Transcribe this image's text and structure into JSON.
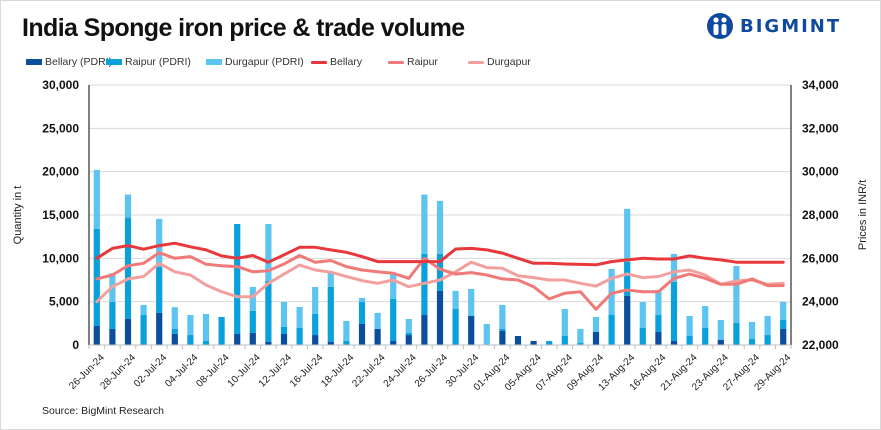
{
  "header": {
    "title": "India Sponge iron price & trade volume",
    "brand": "BIGMINT",
    "brand_icon": "bigmint-people-logo-icon"
  },
  "legend": [
    {
      "label": "Bellary (PDRI)",
      "kind": "bar",
      "color": "#0b4f9c"
    },
    {
      "label": "Raipur (PDRI)",
      "kind": "bar",
      "color": "#0aa0dc"
    },
    {
      "label": "Durgapur (PDRI)",
      "kind": "bar",
      "color": "#5bc4f1"
    },
    {
      "label": "Bellary",
      "kind": "line",
      "color": "#e8383b"
    },
    {
      "label": "Raipur",
      "kind": "line",
      "color": "#f07a78"
    },
    {
      "label": "Durgapur",
      "kind": "line",
      "color": "#f2a09e"
    }
  ],
  "footer": {
    "source": "Source: BigMint Research"
  },
  "chart_data": {
    "type": "bar+line",
    "title": "India Sponge iron price & trade volume",
    "ylabel": "Quantity in t",
    "y2label": "Prices in INR/t",
    "ylim": [
      0,
      30000
    ],
    "yticks": [
      "0",
      "5,000",
      "10,000",
      "15,000",
      "20,000",
      "25,000",
      "30,000"
    ],
    "y2lim": [
      22000,
      34000
    ],
    "y2ticks": [
      "22,000",
      "24,000",
      "26,000",
      "28,000",
      "30,000",
      "32,000",
      "34,000"
    ],
    "grid": true,
    "legend_position": "top",
    "x_tick_labels": [
      "26-Jun-24",
      "28-Jun-24",
      "02-Jul-24",
      "04-Jul-24",
      "08-Jul-24",
      "10-Jul-24",
      "12-Jul-24",
      "16-Jul-24",
      "18-Jul-24",
      "22-Jul-24",
      "24-Jul-24",
      "26-Jul-24",
      "30-Jul-24",
      "01-Aug-24",
      "05-Aug-24",
      "07-Aug-24",
      "09-Aug-24",
      "13-Aug-24",
      "16-Aug-24",
      "21-Aug-24",
      "23-Aug-24",
      "27-Aug-24",
      "29-Aug-24"
    ],
    "x_label_every": 2,
    "bar_series": [
      {
        "name": "Bellary (PDRI)",
        "axis": "left",
        "stacked": true,
        "values": [
          2230,
          1850,
          3000,
          0,
          3700,
          1300,
          0,
          0,
          0,
          1270,
          1390,
          350,
          1270,
          0,
          1150,
          350,
          0,
          2430,
          1850,
          460,
          1150,
          3460,
          6240,
          0,
          3350,
          0,
          1620,
          1040,
          460,
          0,
          0,
          0,
          1500,
          0,
          5660,
          0,
          1500,
          460,
          0,
          0,
          580,
          0,
          0,
          0,
          1850
        ]
      },
      {
        "name": "Raipur (PDRI)",
        "axis": "left",
        "stacked": true,
        "values": [
          11170,
          3120,
          11700,
          3460,
          5300,
          550,
          1150,
          460,
          3230,
          12690,
          2540,
          7040,
          810,
          1960,
          2430,
          6350,
          460,
          2540,
          0,
          4850,
          240,
          7050,
          4270,
          4160,
          0,
          0,
          230,
          0,
          0,
          460,
          1040,
          230,
          0,
          3460,
          3940,
          1960,
          1960,
          6820,
          1040,
          1960,
          0,
          2540,
          690,
          1150,
          1040
        ]
      },
      {
        "name": "Durgapur (PDRI)",
        "axis": "left",
        "stacked": true,
        "values": [
          6800,
          3310,
          2660,
          1160,
          5550,
          2510,
          2310,
          3120,
          0,
          0,
          2770,
          6570,
          2890,
          2430,
          3120,
          1600,
          2310,
          460,
          1850,
          2890,
          1610,
          6850,
          6120,
          2080,
          3120,
          2430,
          2770,
          0,
          0,
          0,
          3120,
          1620,
          1730,
          5320,
          6110,
          3010,
          2890,
          3230,
          2310,
          2540,
          2310,
          6580,
          1970,
          2200,
          2080
        ]
      }
    ],
    "line_series": [
      {
        "name": "Bellary",
        "axis": "right",
        "values": [
          26000,
          26460,
          26590,
          26420,
          26590,
          26700,
          26530,
          26390,
          26110,
          26000,
          26130,
          25820,
          26160,
          26510,
          26510,
          26390,
          26280,
          26080,
          25850,
          25850,
          25850,
          25850,
          25850,
          26430,
          26460,
          26390,
          26240,
          26000,
          25770,
          25770,
          25740,
          25720,
          25700,
          25850,
          25930,
          26000,
          25970,
          25970,
          26110,
          26000,
          25930,
          25820,
          25820,
          25820,
          25820
        ]
      },
      {
        "name": "Raipur",
        "axis": "right",
        "values": [
          25050,
          25230,
          25660,
          25770,
          26260,
          26000,
          26080,
          25730,
          25660,
          25620,
          25380,
          25430,
          25740,
          26130,
          25820,
          25900,
          25620,
          25460,
          25380,
          25310,
          25080,
          26000,
          25500,
          25270,
          25340,
          25230,
          25050,
          25000,
          24690,
          24130,
          24390,
          24460,
          23650,
          24390,
          24540,
          24460,
          24460,
          25080,
          25270,
          25080,
          24800,
          24800,
          25050,
          24740,
          24740
        ]
      },
      {
        "name": "Durgapur",
        "axis": "right",
        "values": [
          24000,
          24690,
          25050,
          25160,
          25770,
          25380,
          25230,
          24770,
          24460,
          24230,
          24230,
          24850,
          25270,
          25690,
          25460,
          25360,
          25160,
          24970,
          24850,
          25000,
          24690,
          24850,
          25000,
          25380,
          25820,
          25570,
          25540,
          25200,
          25110,
          25000,
          25000,
          24850,
          24720,
          25080,
          25280,
          25110,
          25160,
          25380,
          25460,
          25230,
          24800,
          24960,
          25000,
          24800,
          24850
        ]
      }
    ]
  }
}
